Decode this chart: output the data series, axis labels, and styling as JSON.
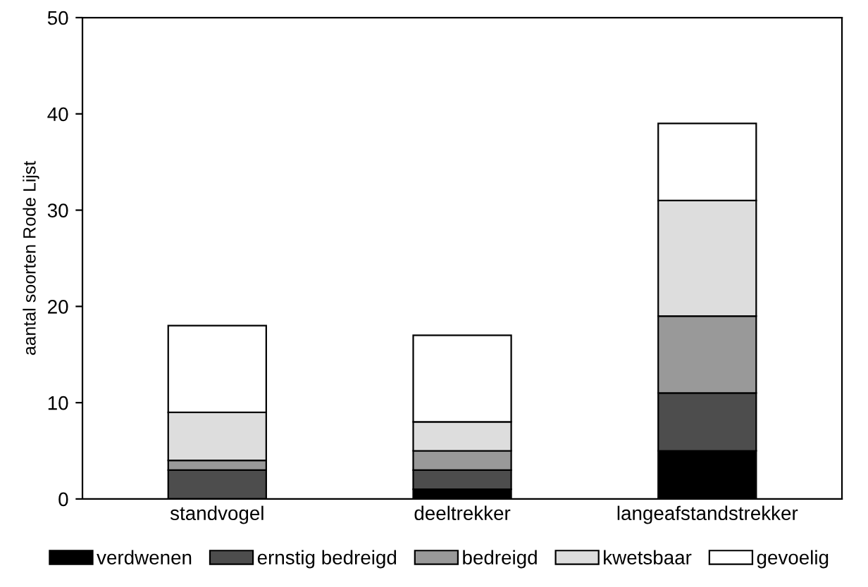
{
  "chart_data": {
    "type": "bar",
    "stacked": true,
    "ylabel": "aantal soorten Rode Lijst",
    "categories": [
      "standvogel",
      "deeltrekker",
      "langeafstandstrekker"
    ],
    "series": [
      {
        "name": "verdwenen",
        "color": "#000000",
        "values": [
          0,
          1,
          5
        ]
      },
      {
        "name": "ernstig bedreigd",
        "color": "#4d4d4d",
        "values": [
          3,
          2,
          6
        ]
      },
      {
        "name": "bedreigd",
        "color": "#999999",
        "values": [
          1,
          2,
          8
        ]
      },
      {
        "name": "kwetsbaar",
        "color": "#dddddd",
        "values": [
          5,
          3,
          12
        ]
      },
      {
        "name": "gevoelig",
        "color": "#ffffff",
        "values": [
          9,
          9,
          8
        ]
      }
    ],
    "ylim": [
      0,
      50
    ],
    "yticks": [
      0,
      10,
      20,
      30,
      40,
      50
    ],
    "grid": false,
    "legend": "bottom"
  }
}
